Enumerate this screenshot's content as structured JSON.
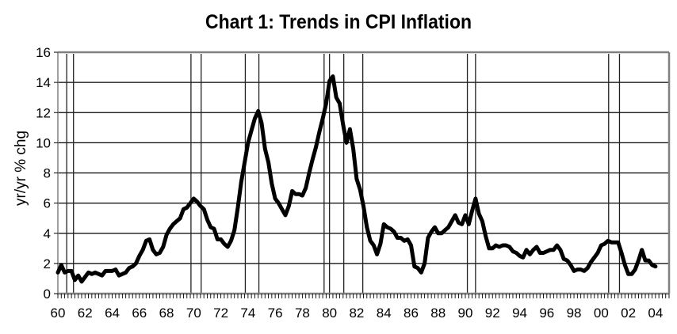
{
  "chart_data": {
    "type": "line",
    "title": "Chart 1: Trends in CPI Inflation",
    "xlabel": "",
    "ylabel": "yr/yr % chg",
    "ylim": [
      0,
      16
    ],
    "xlim": [
      1960,
      2005
    ],
    "yticks": [
      0,
      2,
      4,
      6,
      8,
      10,
      12,
      14,
      16
    ],
    "xtick_labels": [
      "60",
      "62",
      "64",
      "66",
      "68",
      "70",
      "72",
      "74",
      "76",
      "78",
      "80",
      "82",
      "84",
      "86",
      "88",
      "90",
      "92",
      "94",
      "96",
      "98",
      "00",
      "02",
      "04"
    ],
    "grid": "horizontal",
    "legend": null,
    "recession_lines": [
      1960.65,
      1961.15,
      1969.8,
      1970.55,
      1973.8,
      1974.8,
      1979.6,
      1980.0,
      1981.05,
      1982.45,
      1990.15,
      1990.75,
      2000.55,
      2001.35
    ],
    "series": [
      {
        "name": "CPI inflation (yr/yr % chg)",
        "color": "#000000",
        "points": [
          [
            1960.0,
            1.4
          ],
          [
            1960.25,
            1.9
          ],
          [
            1960.5,
            1.4
          ],
          [
            1960.75,
            1.5
          ],
          [
            1961.0,
            1.5
          ],
          [
            1961.25,
            0.9
          ],
          [
            1961.5,
            1.2
          ],
          [
            1961.75,
            0.8
          ],
          [
            1962.0,
            1.1
          ],
          [
            1962.25,
            1.4
          ],
          [
            1962.5,
            1.3
          ],
          [
            1962.75,
            1.4
          ],
          [
            1963.0,
            1.3
          ],
          [
            1963.25,
            1.2
          ],
          [
            1963.5,
            1.5
          ],
          [
            1963.75,
            1.5
          ],
          [
            1964.0,
            1.5
          ],
          [
            1964.25,
            1.6
          ],
          [
            1964.5,
            1.2
          ],
          [
            1964.75,
            1.3
          ],
          [
            1965.0,
            1.4
          ],
          [
            1965.25,
            1.7
          ],
          [
            1965.5,
            1.8
          ],
          [
            1965.75,
            2.0
          ],
          [
            1966.0,
            2.5
          ],
          [
            1966.25,
            2.9
          ],
          [
            1966.5,
            3.5
          ],
          [
            1966.75,
            3.6
          ],
          [
            1967.0,
            2.9
          ],
          [
            1967.25,
            2.6
          ],
          [
            1967.5,
            2.7
          ],
          [
            1967.75,
            3.1
          ],
          [
            1968.0,
            3.9
          ],
          [
            1968.25,
            4.3
          ],
          [
            1968.5,
            4.6
          ],
          [
            1968.75,
            4.8
          ],
          [
            1969.0,
            5.0
          ],
          [
            1969.25,
            5.6
          ],
          [
            1969.5,
            5.7
          ],
          [
            1969.75,
            6.0
          ],
          [
            1970.0,
            6.3
          ],
          [
            1970.25,
            6.1
          ],
          [
            1970.5,
            5.8
          ],
          [
            1970.75,
            5.6
          ],
          [
            1971.0,
            4.9
          ],
          [
            1971.25,
            4.4
          ],
          [
            1971.5,
            4.3
          ],
          [
            1971.75,
            3.6
          ],
          [
            1972.0,
            3.6
          ],
          [
            1972.25,
            3.3
          ],
          [
            1972.5,
            3.1
          ],
          [
            1972.75,
            3.5
          ],
          [
            1973.0,
            4.2
          ],
          [
            1973.25,
            5.7
          ],
          [
            1973.5,
            7.4
          ],
          [
            1973.75,
            8.7
          ],
          [
            1974.0,
            10.0
          ],
          [
            1974.25,
            10.8
          ],
          [
            1974.5,
            11.6
          ],
          [
            1974.75,
            12.1
          ],
          [
            1975.0,
            11.3
          ],
          [
            1975.25,
            9.6
          ],
          [
            1975.5,
            8.7
          ],
          [
            1975.75,
            7.3
          ],
          [
            1976.0,
            6.3
          ],
          [
            1976.25,
            6.0
          ],
          [
            1976.5,
            5.6
          ],
          [
            1976.75,
            5.2
          ],
          [
            1977.0,
            5.8
          ],
          [
            1977.25,
            6.8
          ],
          [
            1977.5,
            6.6
          ],
          [
            1977.75,
            6.6
          ],
          [
            1978.0,
            6.5
          ],
          [
            1978.25,
            7.0
          ],
          [
            1978.5,
            8.0
          ],
          [
            1978.75,
            8.9
          ],
          [
            1979.0,
            9.7
          ],
          [
            1979.25,
            10.7
          ],
          [
            1979.5,
            11.6
          ],
          [
            1979.75,
            12.6
          ],
          [
            1980.0,
            14.1
          ],
          [
            1980.25,
            14.4
          ],
          [
            1980.5,
            13.0
          ],
          [
            1980.75,
            12.6
          ],
          [
            1981.0,
            11.2
          ],
          [
            1981.25,
            10.0
          ],
          [
            1981.5,
            10.9
          ],
          [
            1981.75,
            9.6
          ],
          [
            1982.0,
            7.6
          ],
          [
            1982.25,
            6.9
          ],
          [
            1982.5,
            5.8
          ],
          [
            1982.75,
            4.4
          ],
          [
            1983.0,
            3.5
          ],
          [
            1983.25,
            3.2
          ],
          [
            1983.5,
            2.6
          ],
          [
            1983.75,
            3.3
          ],
          [
            1984.0,
            4.6
          ],
          [
            1984.25,
            4.4
          ],
          [
            1984.5,
            4.3
          ],
          [
            1984.75,
            4.1
          ],
          [
            1985.0,
            3.7
          ],
          [
            1985.25,
            3.7
          ],
          [
            1985.5,
            3.5
          ],
          [
            1985.75,
            3.6
          ],
          [
            1986.0,
            3.2
          ],
          [
            1986.25,
            1.8
          ],
          [
            1986.5,
            1.7
          ],
          [
            1986.75,
            1.4
          ],
          [
            1987.0,
            2.0
          ],
          [
            1987.25,
            3.7
          ],
          [
            1987.5,
            4.1
          ],
          [
            1987.75,
            4.4
          ],
          [
            1988.0,
            4.0
          ],
          [
            1988.25,
            4.0
          ],
          [
            1988.5,
            4.2
          ],
          [
            1988.75,
            4.4
          ],
          [
            1989.0,
            4.8
          ],
          [
            1989.25,
            5.2
          ],
          [
            1989.5,
            4.7
          ],
          [
            1989.75,
            4.6
          ],
          [
            1990.0,
            5.2
          ],
          [
            1990.25,
            4.6
          ],
          [
            1990.5,
            5.5
          ],
          [
            1990.75,
            6.3
          ],
          [
            1991.0,
            5.3
          ],
          [
            1991.25,
            4.8
          ],
          [
            1991.5,
            3.8
          ],
          [
            1991.75,
            3.0
          ],
          [
            1992.0,
            3.0
          ],
          [
            1992.25,
            3.2
          ],
          [
            1992.5,
            3.1
          ],
          [
            1992.75,
            3.2
          ],
          [
            1993.0,
            3.2
          ],
          [
            1993.25,
            3.1
          ],
          [
            1993.5,
            2.8
          ],
          [
            1993.75,
            2.7
          ],
          [
            1994.0,
            2.5
          ],
          [
            1994.25,
            2.4
          ],
          [
            1994.5,
            2.9
          ],
          [
            1994.75,
            2.6
          ],
          [
            1995.0,
            2.9
          ],
          [
            1995.25,
            3.1
          ],
          [
            1995.5,
            2.7
          ],
          [
            1995.75,
            2.7
          ],
          [
            1996.0,
            2.8
          ],
          [
            1996.25,
            2.9
          ],
          [
            1996.5,
            2.9
          ],
          [
            1996.75,
            3.2
          ],
          [
            1997.0,
            2.9
          ],
          [
            1997.25,
            2.3
          ],
          [
            1997.5,
            2.2
          ],
          [
            1997.75,
            1.9
          ],
          [
            1998.0,
            1.5
          ],
          [
            1998.25,
            1.6
          ],
          [
            1998.5,
            1.6
          ],
          [
            1998.75,
            1.5
          ],
          [
            1999.0,
            1.7
          ],
          [
            1999.25,
            2.1
          ],
          [
            1999.5,
            2.4
          ],
          [
            1999.75,
            2.7
          ],
          [
            2000.0,
            3.2
          ],
          [
            2000.25,
            3.3
          ],
          [
            2000.5,
            3.5
          ],
          [
            2000.75,
            3.4
          ],
          [
            2001.0,
            3.4
          ],
          [
            2001.25,
            3.4
          ],
          [
            2001.5,
            2.7
          ],
          [
            2001.75,
            1.9
          ],
          [
            2002.0,
            1.3
          ],
          [
            2002.25,
            1.3
          ],
          [
            2002.5,
            1.6
          ],
          [
            2002.75,
            2.2
          ],
          [
            2003.0,
            2.9
          ],
          [
            2003.25,
            2.2
          ],
          [
            2003.5,
            2.2
          ],
          [
            2003.75,
            1.9
          ],
          [
            2004.0,
            1.8
          ]
        ]
      }
    ]
  }
}
